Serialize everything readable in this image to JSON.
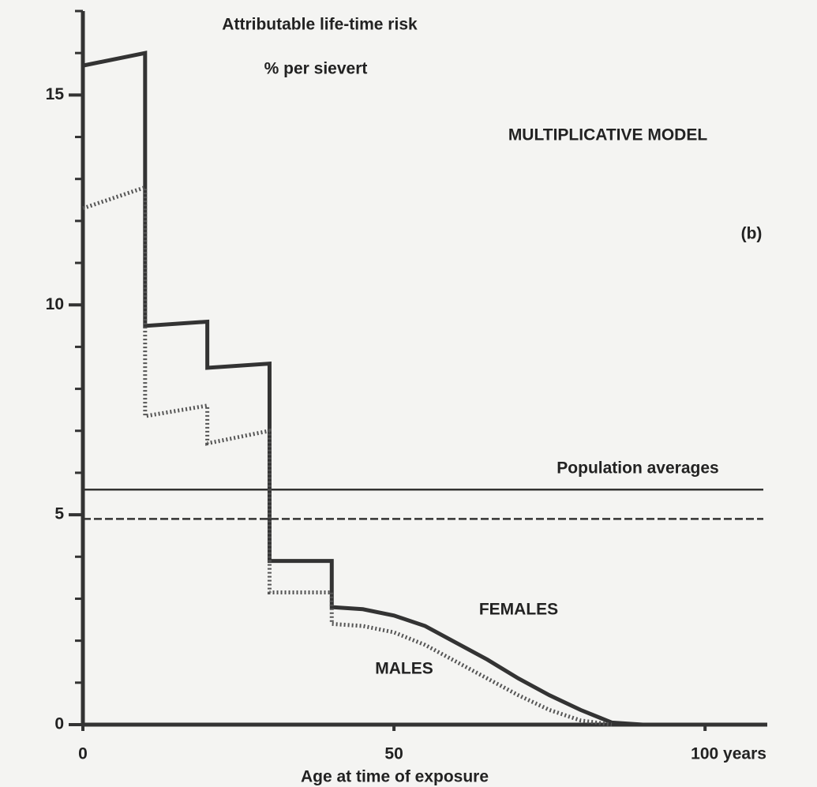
{
  "chart_data": {
    "type": "line",
    "title": "Attributable life-time risk",
    "subtitle": "% per sievert",
    "annotations": [
      "MULTIPLICATIVE MODEL",
      "(b)",
      "Population averages"
    ],
    "x_label": "Age at time of exposure",
    "xlim": [
      0,
      110
    ],
    "xticks": [
      0,
      50,
      {
        "value": 100,
        "label": "100 years"
      }
    ],
    "ylim": [
      0,
      17
    ],
    "yticks": [
      0,
      5,
      10,
      15
    ],
    "yminor_ticks": [
      1,
      2,
      3,
      4,
      6,
      7,
      8,
      9,
      11,
      12,
      13,
      14,
      16,
      17
    ],
    "series": [
      {
        "name": "FEMALES",
        "color": "#333333",
        "style": "solid",
        "x": [
          0,
          10,
          10,
          20,
          20,
          30,
          30,
          40,
          40,
          45,
          50,
          55,
          60,
          65,
          70,
          75,
          80,
          85,
          90,
          110
        ],
        "values": [
          15.7,
          16.0,
          9.5,
          9.6,
          8.5,
          8.6,
          3.9,
          3.9,
          2.8,
          2.75,
          2.6,
          2.35,
          1.95,
          1.55,
          1.1,
          0.7,
          0.35,
          0.05,
          0,
          0
        ]
      },
      {
        "name": "MALES",
        "color": "#555555",
        "style": "dotted",
        "x": [
          0,
          10,
          10,
          20,
          20,
          30,
          30,
          40,
          40,
          45,
          50,
          55,
          60,
          65,
          70,
          75,
          80,
          85
        ],
        "values": [
          12.3,
          12.8,
          7.35,
          7.6,
          6.7,
          7.0,
          3.15,
          3.15,
          2.4,
          2.35,
          2.2,
          1.9,
          1.5,
          1.1,
          0.7,
          0.35,
          0.1,
          0
        ]
      }
    ],
    "reference_lines": [
      {
        "value": 5.6,
        "style": "solid"
      },
      {
        "value": 4.9,
        "style": "dashed"
      }
    ]
  }
}
